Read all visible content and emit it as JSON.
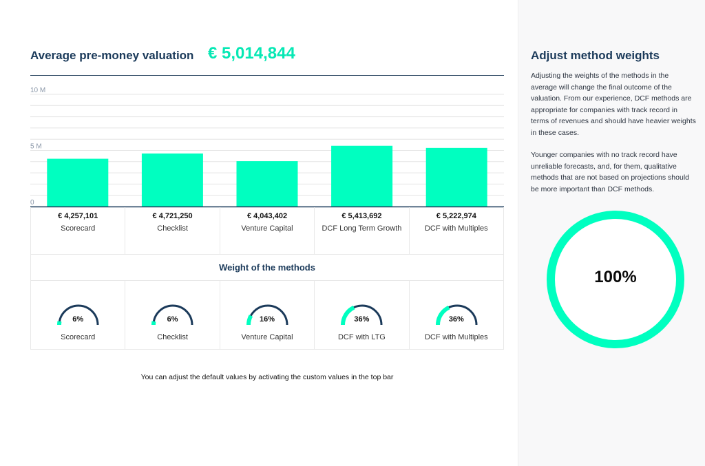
{
  "header": {
    "label": "Average pre-money valuation",
    "value": "€ 5,014,844"
  },
  "colors": {
    "accent": "#00ffc0",
    "navy": "#1b3a5a",
    "grid": "#e4e4e4"
  },
  "chart_data": {
    "type": "bar",
    "categories": [
      "Scorecard",
      "Checklist",
      "Venture Capital",
      "DCF Long Term Growth",
      "DCF with Multiples"
    ],
    "values": [
      4257101,
      4721250,
      4043402,
      5413692,
      5222974
    ],
    "value_labels": [
      "€ 4,257,101",
      "€ 4,721,250",
      "€ 4,043,402",
      "€ 5,413,692",
      "€ 5,222,974"
    ],
    "ylim": [
      0,
      10000000
    ],
    "yticks": [
      {
        "value": 0,
        "label": "0"
      },
      {
        "value": 5000000,
        "label": "5 M"
      },
      {
        "value": 10000000,
        "label": "10 M"
      }
    ],
    "gridlines": [
      0,
      1000000,
      2000000,
      3000000,
      4000000,
      5000000,
      6000000,
      7000000,
      8000000,
      9000000,
      10000000
    ],
    "title": "",
    "xlabel": "",
    "ylabel": ""
  },
  "weights": {
    "title": "Weight of the methods",
    "items": [
      {
        "name": "Scorecard",
        "label": "6%",
        "value": 6
      },
      {
        "name": "Checklist",
        "label": "6%",
        "value": 6
      },
      {
        "name": "Venture Capital",
        "label": "16%",
        "value": 16
      },
      {
        "name": "DCF with LTG",
        "label": "36%",
        "value": 36
      },
      {
        "name": "DCF with Multiples",
        "label": "36%",
        "value": 36
      }
    ]
  },
  "footnote": "You can adjust the default values by activating the custom values in the top bar",
  "sidebar": {
    "title": "Adjust  method weights",
    "paragraph1": "Adjusting the weights of the methods in the average will change the final outcome of the valuation. From our experience, DCF methods are appropriate for companies with track record in terms of revenues and should have heavier weights in these cases.",
    "paragraph2": "Younger companies with no track record have unreliable forecasts, and, for them, qualitative methods that are not based on projections should be more important than DCF methods.",
    "total_label": "100%",
    "total_value": 100
  }
}
